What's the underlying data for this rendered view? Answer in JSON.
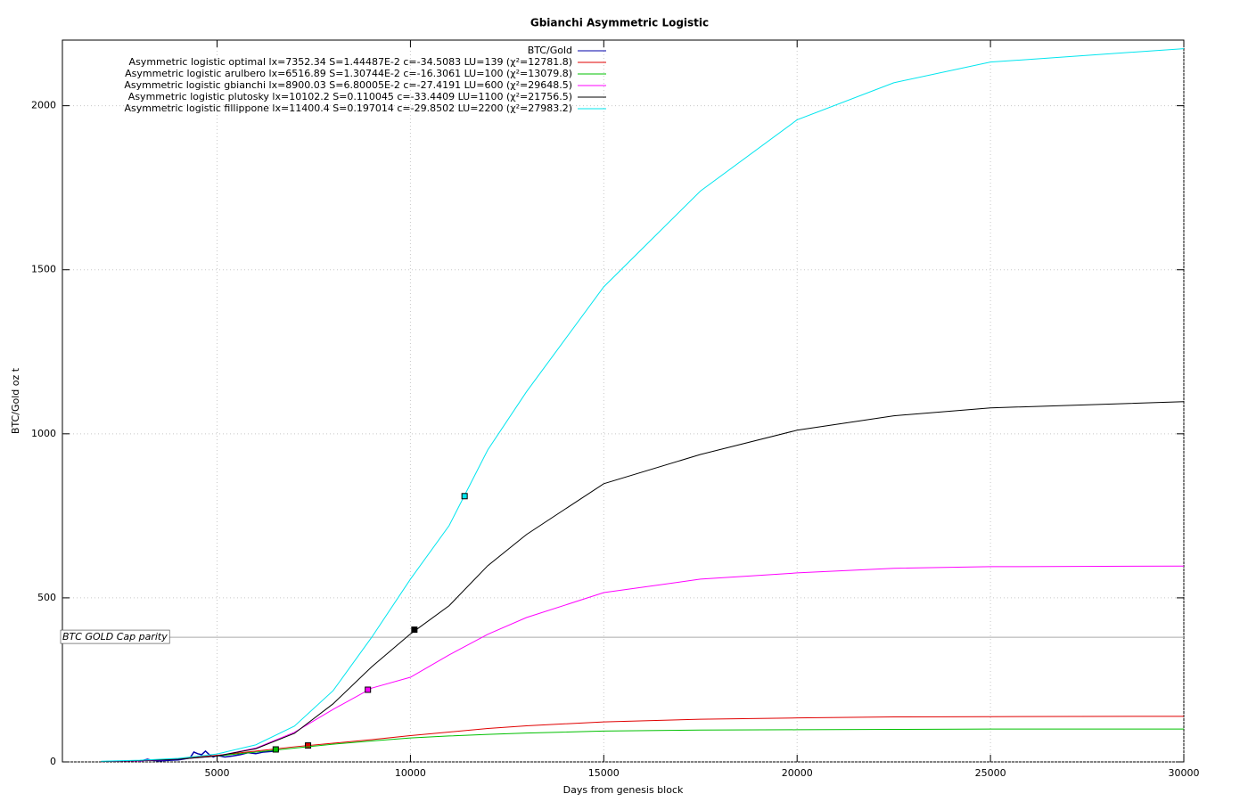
{
  "chart_data": {
    "type": "line",
    "title": "Gbianchi Asymmetric Logistic",
    "xlabel": "Days from genesis block",
    "ylabel": "BTC/Gold oz t",
    "xlim": [
      1000,
      30000
    ],
    "xticks": [
      5000,
      10000,
      15000,
      20000,
      25000,
      30000
    ],
    "ylim": [
      0,
      2200
    ],
    "yticks": [
      0,
      500,
      1000,
      1500,
      2000
    ],
    "grid": true,
    "annotation": {
      "text": "BTC GOLD Cap parity",
      "value": 380
    },
    "series": [
      {
        "name": "BTC/Gold",
        "color": "#0000aa",
        "x": [
          3000,
          3200,
          3300,
          3500,
          3800,
          4000,
          4300,
          4400,
          4500,
          4600,
          4700,
          4800,
          4900,
          5000,
          5200,
          5400,
          5600,
          5800,
          6000,
          6200,
          6400,
          6600
        ],
        "values": [
          2,
          8,
          5,
          3,
          5,
          6,
          12,
          30,
          25,
          22,
          33,
          22,
          15,
          20,
          15,
          18,
          22,
          28,
          25,
          30,
          32,
          35
        ]
      },
      {
        "name": "Asymmetric logistic optimal lx=7352.34 S=1.44487E-2 c=-34.5083 LU=139 (χ²=12781.8)",
        "color": "#e00000",
        "x": [
          2000,
          3000,
          4000,
          5000,
          6000,
          7000,
          8000,
          9000,
          10000,
          11000,
          12000,
          13000,
          15000,
          17500,
          20000,
          22500,
          25000,
          30000
        ],
        "values": [
          1,
          4,
          10,
          20,
          33,
          46,
          57,
          68,
          80,
          91,
          102,
          110,
          122,
          130,
          134,
          137,
          138,
          139
        ],
        "marker": {
          "x": 7352.34,
          "y": 50
        }
      },
      {
        "name": "Asymmetric logistic arulbero lx=6516.89 S=1.30744E-2 c=-16.3061 LU=100 (χ²=13079.8)",
        "color": "#00c000",
        "x": [
          2000,
          3000,
          4000,
          5000,
          6000,
          7000,
          8000,
          9000,
          10000,
          11000,
          12000,
          13000,
          15000,
          17500,
          20000,
          22500,
          25000,
          30000
        ],
        "values": [
          1,
          4,
          9,
          18,
          30,
          42,
          54,
          64,
          73,
          79,
          84,
          88,
          94,
          97,
          98,
          99,
          100,
          100
        ],
        "marker": {
          "x": 6516.89,
          "y": 38
        }
      },
      {
        "name": "Asymmetric logistic gbianchi lx=8900.03 S=6.80005E-2 c=-27.4191 LU=600 (χ²=29648.5)",
        "color": "#ff00ff",
        "x": [
          2000,
          3000,
          4000,
          5000,
          6000,
          7000,
          8000,
          9000,
          10000,
          11000,
          12000,
          13000,
          15000,
          17500,
          20000,
          22500,
          25000,
          30000
        ],
        "values": [
          1,
          3,
          8,
          18,
          42,
          90,
          160,
          225,
          258,
          326,
          389,
          440,
          516,
          557,
          576,
          590,
          595,
          597
        ],
        "marker": {
          "x": 8900.03,
          "y": 220
        }
      },
      {
        "name": "Asymmetric logistic plutosky lx=10102.2 S=0.110045 c=-33.4409 LU=1100 (χ²=21756.5)",
        "color": "#000000",
        "x": [
          2000,
          3000,
          4000,
          5000,
          6000,
          7000,
          8000,
          9000,
          10000,
          11000,
          12000,
          13000,
          15000,
          17500,
          20000,
          22500,
          25000,
          30000
        ],
        "values": [
          1,
          4,
          8,
          18,
          40,
          87,
          177,
          290,
          390,
          476,
          598,
          693,
          848,
          937,
          1011,
          1055,
          1079,
          1098
        ],
        "marker": {
          "x": 10102.2,
          "y": 403
        }
      },
      {
        "name": "Asymmetric logistic fillippone lx=11400.4 S=0.197014 c=-29.8502 LU=2200 (χ²=27983.2)",
        "color": "#00e5ee",
        "x": [
          2000,
          3000,
          4000,
          5000,
          6000,
          7000,
          8000,
          9000,
          10000,
          11000,
          12000,
          13000,
          15000,
          17500,
          20000,
          22500,
          25000,
          30000
        ],
        "values": [
          2,
          5,
          11,
          24,
          52,
          109,
          217,
          380,
          557,
          720,
          951,
          1128,
          1448,
          1740,
          1957,
          2070,
          2133,
          2174
        ],
        "marker": {
          "x": 11400.4,
          "y": 810
        }
      }
    ]
  }
}
